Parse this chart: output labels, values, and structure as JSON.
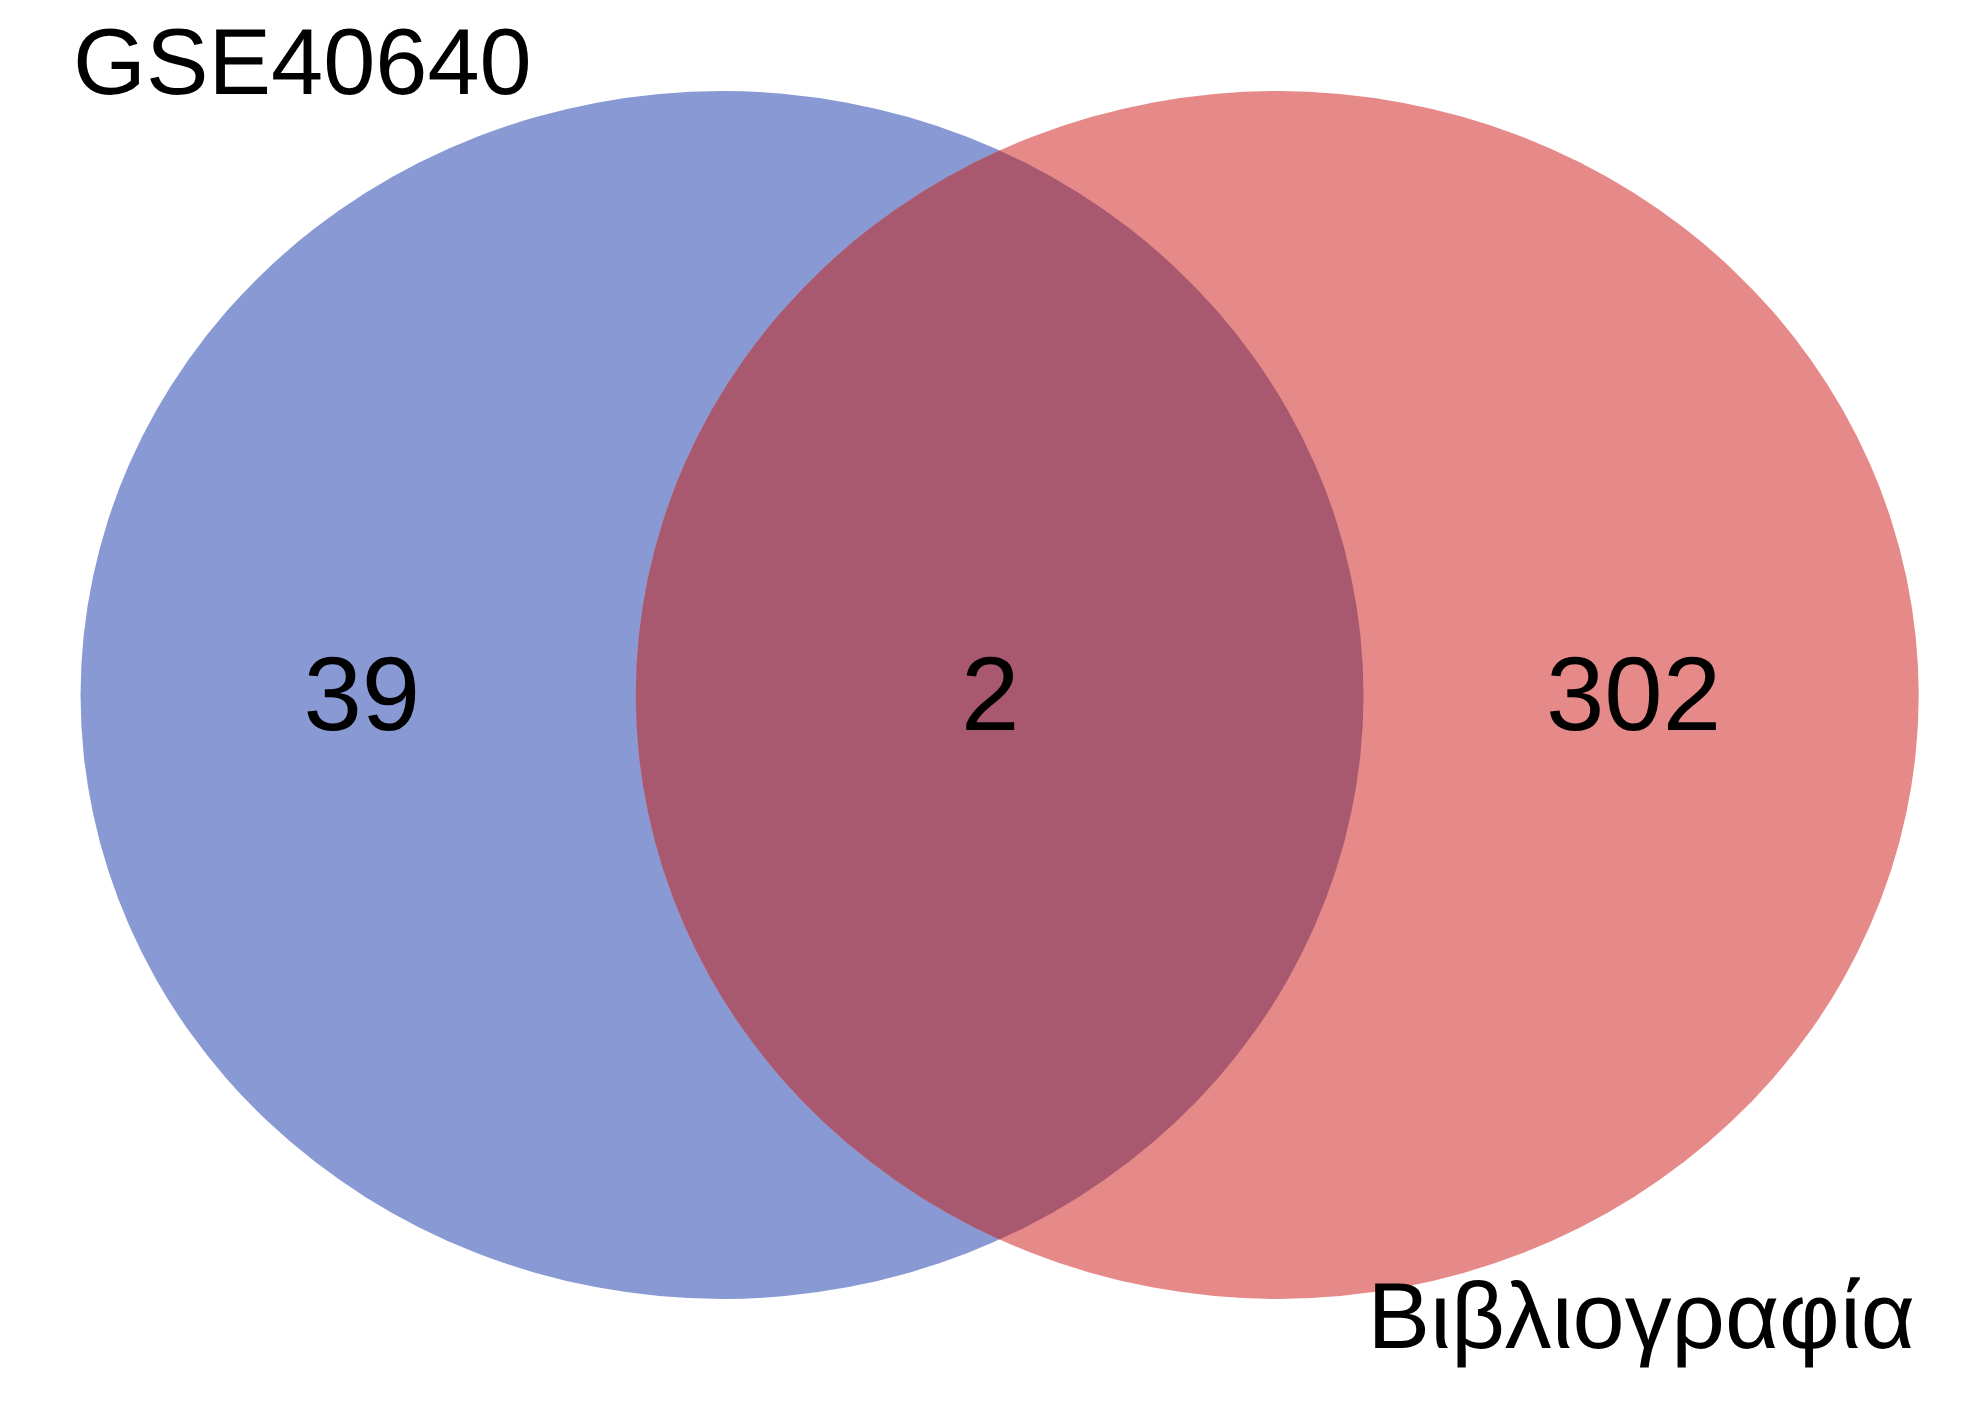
{
  "chart_data": {
    "type": "other",
    "categories": [
      null,
      null,
      null
    ],
    "colors": [
      "#8899d4",
      "#a8586f",
      "#e58a88"
    ],
    "values": [
      39,
      2,
      302
    ],
    "data_labels": true,
    "annotations": [
      "GSE40640",
      "Βιβλιογραφία"
    ]
  }
}
